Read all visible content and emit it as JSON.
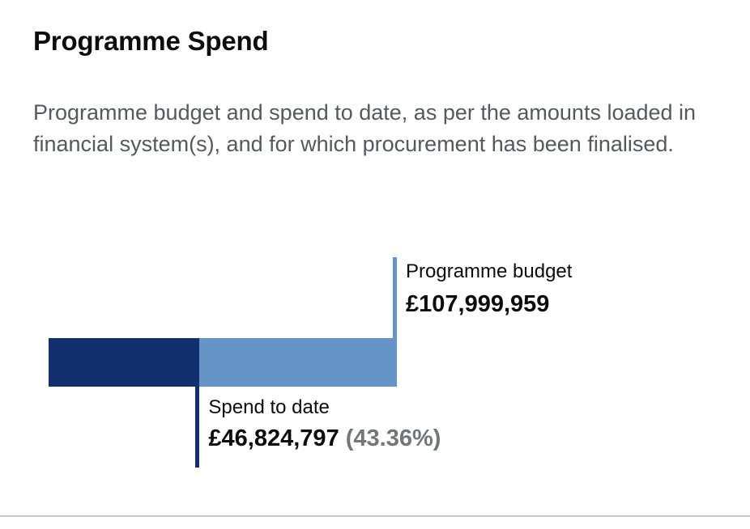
{
  "heading": "Programme Spend",
  "description": "Programme budget and spend to date, as per the amounts loaded in financial system(s), and for which procurement has been finalised.",
  "chart_data": {
    "type": "bar",
    "orientation": "horizontal",
    "title": "Programme Spend",
    "series": [
      {
        "name": "Programme budget",
        "value": 107999959,
        "display": "£107,999,959",
        "color": "#6593c5"
      },
      {
        "name": "Spend to date",
        "value": 46824797,
        "display": "£46,824,797",
        "percent": "(43.36%)",
        "color": "#12306f"
      }
    ]
  }
}
